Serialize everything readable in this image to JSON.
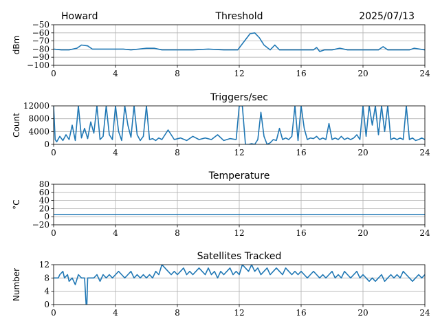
{
  "header": {
    "station": "Howard",
    "date": "2025/07/13"
  },
  "chart_data": [
    {
      "type": "line",
      "title": "Threshold",
      "ylabel": "dBm",
      "xlabel": "",
      "xlim": [
        0,
        24
      ],
      "ylim": [
        -100,
        -50
      ],
      "x_ticks": [
        0,
        4,
        8,
        12,
        16,
        20,
        24
      ],
      "y_ticks": [
        -100,
        -90,
        -80,
        -70,
        -60,
        -50
      ],
      "y_tick_labels": [
        "−100",
        "−90",
        "−80",
        "−70",
        "−60",
        "−50"
      ],
      "grid": true,
      "color": "#1f77b4",
      "series": [
        {
          "x": [
            0,
            0.5,
            1,
            1.5,
            1.8,
            2.2,
            2.5,
            3,
            3.5,
            4,
            4.5,
            5,
            5.5,
            6,
            6.5,
            7,
            8,
            9,
            10,
            11,
            11.9,
            12.3,
            12.7,
            13.0,
            13.3,
            13.6,
            14.0,
            14.3,
            14.6,
            15,
            16,
            16.8,
            17.0,
            17.2,
            17.5,
            18,
            18.5,
            19,
            20,
            21,
            21.3,
            21.6,
            22,
            23,
            23.3,
            24
          ],
          "y": [
            -80,
            -81,
            -81,
            -79,
            -75,
            -76,
            -80,
            -80,
            -80,
            -80,
            -80,
            -81,
            -80,
            -79,
            -79,
            -81,
            -81,
            -81,
            -80,
            -81,
            -81,
            -71,
            -61,
            -60,
            -66,
            -75,
            -81,
            -75,
            -81,
            -81,
            -81,
            -81,
            -78,
            -83,
            -81,
            -81,
            -79,
            -81,
            -81,
            -81,
            -77,
            -81,
            -81,
            -81,
            -79,
            -81
          ]
        }
      ]
    },
    {
      "type": "line",
      "title": "Triggers/sec",
      "ylabel": "Count",
      "xlabel": "",
      "xlim": [
        0,
        24
      ],
      "ylim": [
        0,
        12000
      ],
      "x_ticks": [
        0,
        4,
        8,
        12,
        16,
        20,
        24
      ],
      "y_ticks": [
        0,
        4000,
        8000,
        12000
      ],
      "y_tick_labels": [
        "0",
        "4000",
        "8000",
        "12000"
      ],
      "grid": true,
      "color": "#1f77b4",
      "series": [
        {
          "x": [
            0,
            0.1,
            0.2,
            0.4,
            0.6,
            0.8,
            1.0,
            1.2,
            1.4,
            1.6,
            1.8,
            2.0,
            2.2,
            2.4,
            2.6,
            2.8,
            3.0,
            3.2,
            3.4,
            3.6,
            3.8,
            4.0,
            4.2,
            4.4,
            4.6,
            4.8,
            5.0,
            5.2,
            5.4,
            5.6,
            5.8,
            6.0,
            6.2,
            6.4,
            6.6,
            6.8,
            7.0,
            7.4,
            7.8,
            8.2,
            8.6,
            9.0,
            9.4,
            9.8,
            10.2,
            10.6,
            11.0,
            11.4,
            11.8,
            12.0,
            12.2,
            12.4,
            12.6,
            12.8,
            13.0,
            13.2,
            13.4,
            13.6,
            13.8,
            14.0,
            14.2,
            14.4,
            14.6,
            14.8,
            15.0,
            15.2,
            15.4,
            15.6,
            15.8,
            16.0,
            16.2,
            16.4,
            16.6,
            16.8,
            17.0,
            17.2,
            17.4,
            17.6,
            17.8,
            18.0,
            18.2,
            18.4,
            18.6,
            18.8,
            19.0,
            19.2,
            19.4,
            19.6,
            19.8,
            20.0,
            20.2,
            20.4,
            20.6,
            20.8,
            21.0,
            21.2,
            21.4,
            21.6,
            21.8,
            22.0,
            22.2,
            22.4,
            22.6,
            22.8,
            23.0,
            23.2,
            23.4,
            23.6,
            23.8,
            24.0
          ],
          "y": [
            12000,
            1500,
            800,
            2500,
            1200,
            3000,
            1500,
            6000,
            1200,
            12000,
            2000,
            5000,
            1800,
            7000,
            3500,
            12000,
            1500,
            2500,
            12000,
            3000,
            1500,
            12000,
            4000,
            1200,
            12000,
            6000,
            2200,
            12000,
            3000,
            1200,
            2500,
            12000,
            1500,
            1800,
            1200,
            2000,
            1500,
            4500,
            1500,
            2000,
            1200,
            2500,
            1500,
            2000,
            1500,
            3000,
            1200,
            1800,
            1500,
            12000,
            12000,
            0,
            0,
            200,
            0,
            1500,
            10000,
            2500,
            0,
            500,
            1500,
            1200,
            5000,
            1500,
            2000,
            1500,
            2500,
            12000,
            1200,
            12000,
            5000,
            1500,
            2000,
            1800,
            2500,
            1500,
            2000,
            1500,
            6500,
            1500,
            2000,
            1500,
            2500,
            1500,
            2000,
            1500,
            2000,
            3000,
            1500,
            12000,
            2500,
            12000,
            6000,
            12000,
            3000,
            12000,
            4000,
            12000,
            1500,
            2000,
            1500,
            2000,
            1500,
            12000,
            1500,
            2000,
            1200,
            1500,
            2000,
            1500
          ]
        }
      ]
    },
    {
      "type": "line",
      "title": "Temperature",
      "ylabel": "°C",
      "xlabel": "",
      "xlim": [
        0,
        24
      ],
      "ylim": [
        -20,
        80
      ],
      "x_ticks": [
        0,
        4,
        8,
        12,
        16,
        20,
        24
      ],
      "y_ticks": [
        -20,
        0,
        20,
        40,
        60,
        80
      ],
      "y_tick_labels": [
        "−20",
        "0",
        "20",
        "40",
        "60",
        "80"
      ],
      "grid": true,
      "color": "#1f77b4",
      "series": [
        {
          "x": [
            0,
            24
          ],
          "y": [
            5,
            5
          ]
        }
      ]
    },
    {
      "type": "line",
      "title": "Satellites Tracked",
      "ylabel": "Number",
      "xlabel": "",
      "xlim": [
        0,
        24
      ],
      "ylim": [
        0,
        12
      ],
      "x_ticks": [
        0,
        4,
        8,
        12,
        16,
        20,
        24
      ],
      "y_ticks": [
        0,
        4,
        8,
        12
      ],
      "y_tick_labels": [
        "0",
        "4",
        "8",
        "12"
      ],
      "grid": true,
      "color": "#1f77b4",
      "series": [
        {
          "x": [
            0,
            0.3,
            0.4,
            0.6,
            0.7,
            0.9,
            1.0,
            1.2,
            1.4,
            1.6,
            1.8,
            2.0,
            2.1,
            2.15,
            2.2,
            2.6,
            2.8,
            3.0,
            3.2,
            3.4,
            3.6,
            3.8,
            4.0,
            4.2,
            4.4,
            4.6,
            4.8,
            5.0,
            5.2,
            5.4,
            5.6,
            5.8,
            6.0,
            6.2,
            6.4,
            6.6,
            6.8,
            7.0,
            7.2,
            7.4,
            7.6,
            7.8,
            8.0,
            8.2,
            8.4,
            8.6,
            8.8,
            9.0,
            9.2,
            9.4,
            9.6,
            9.8,
            10.0,
            10.2,
            10.4,
            10.6,
            10.8,
            11.0,
            11.2,
            11.4,
            11.6,
            11.8,
            12.0,
            12.2,
            12.4,
            12.6,
            12.8,
            13.0,
            13.2,
            13.4,
            13.6,
            13.8,
            14.0,
            14.2,
            14.4,
            14.6,
            14.8,
            15.0,
            15.2,
            15.4,
            15.6,
            15.8,
            16.0,
            16.2,
            16.4,
            16.6,
            16.8,
            17.0,
            17.2,
            17.4,
            17.6,
            17.8,
            18.0,
            18.2,
            18.4,
            18.6,
            18.8,
            19.0,
            19.2,
            19.4,
            19.6,
            19.8,
            20.0,
            20.2,
            20.4,
            20.6,
            20.8,
            21.0,
            21.2,
            21.4,
            21.6,
            21.8,
            22.0,
            22.2,
            22.4,
            22.6,
            22.8,
            23.0,
            23.2,
            23.4,
            23.6,
            23.8,
            24.0
          ],
          "y": [
            8,
            8,
            9,
            10,
            8,
            9,
            7,
            8,
            6,
            9,
            8,
            8,
            0,
            0,
            8,
            8,
            9,
            7,
            9,
            8,
            9,
            8,
            9,
            10,
            9,
            8,
            9,
            10,
            8,
            9,
            8,
            9,
            8,
            9,
            8,
            10,
            9,
            12,
            11,
            10,
            9,
            10,
            9,
            10,
            11,
            9,
            10,
            9,
            10,
            11,
            10,
            9,
            11,
            9,
            10,
            8,
            10,
            9,
            10,
            11,
            9,
            10,
            9,
            12,
            11,
            10,
            12,
            10,
            11,
            9,
            10,
            11,
            9,
            10,
            11,
            10,
            9,
            11,
            10,
            9,
            10,
            9,
            10,
            9,
            8,
            9,
            10,
            9,
            8,
            9,
            8,
            9,
            10,
            8,
            9,
            8,
            10,
            9,
            8,
            9,
            10,
            8,
            9,
            8,
            7,
            8,
            7,
            8,
            9,
            7,
            8,
            9,
            8,
            9,
            8,
            10,
            9,
            8,
            7,
            8,
            9,
            8,
            9
          ]
        }
      ]
    }
  ]
}
